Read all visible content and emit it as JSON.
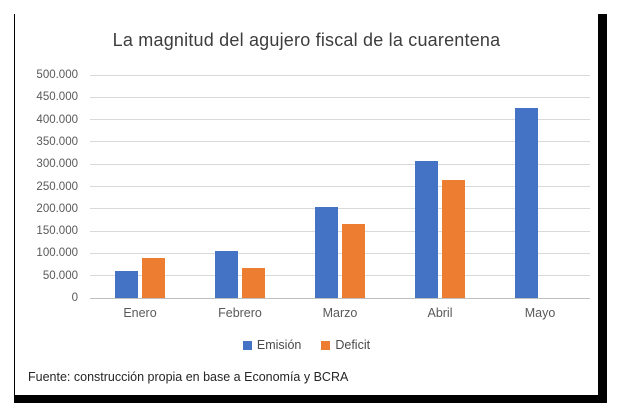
{
  "chart_data": {
    "type": "bar",
    "title": "La magnitud del agujero fiscal de la cuarentena",
    "categories": [
      "Enero",
      "Febrero",
      "Marzo",
      "Abril",
      "Mayo"
    ],
    "series": [
      {
        "name": "Emisión",
        "color": "#4472C4",
        "values": [
          60000,
          105000,
          205000,
          307000,
          425000
        ]
      },
      {
        "name": "Deficit",
        "color": "#ED7D31",
        "values": [
          90000,
          67000,
          165000,
          265000,
          null
        ]
      }
    ],
    "ylim": [
      0,
      500000
    ],
    "ytick_step": 50000,
    "ytick_labels": [
      "0",
      "50.000",
      "100.000",
      "150.000",
      "200.000",
      "250.000",
      "300.000",
      "350.000",
      "400.000",
      "450.000",
      "500.000"
    ],
    "grid": true,
    "legend_position": "bottom"
  },
  "source_note": "Fuente: construcción propia en base a Economía y BCRA",
  "colors": {
    "emision": "#4472C4",
    "deficit": "#ED7D31",
    "gridline": "#D9D9D9",
    "axis_line": "#BFBFBF",
    "tick_label": "#595959",
    "title": "#3D3D3D"
  }
}
